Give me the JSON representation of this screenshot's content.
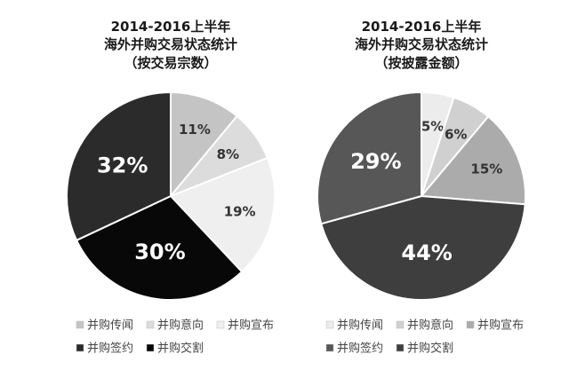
{
  "chart_data": [
    {
      "type": "pie",
      "title_lines": [
        "2014-2016上半年",
        "海外并购交易状态统计",
        "（按交易宗数）"
      ],
      "slices": [
        {
          "name": "并购传闻",
          "value": 11,
          "label": "11%",
          "color": "#c4c4c4"
        },
        {
          "name": "并购意向",
          "value": 8,
          "label": "8%",
          "color": "#dcdcdc"
        },
        {
          "name": "并购宣布",
          "value": 19,
          "label": "19%",
          "color": "#efefef"
        },
        {
          "name": "并购交割",
          "value": 30,
          "label": "30%",
          "color": "#080808"
        },
        {
          "name": "并购签约",
          "value": 32,
          "label": "32%",
          "color": "#2b2b2b"
        }
      ],
      "legend": [
        {
          "name": "并购传闻",
          "color": "#c4c4c4"
        },
        {
          "name": "并购意向",
          "color": "#dcdcdc"
        },
        {
          "name": "并购宣布",
          "color": "#efefef"
        },
        {
          "name": "并购签约",
          "color": "#2b2b2b"
        },
        {
          "name": "并购交割",
          "color": "#080808"
        }
      ],
      "legend_placement": "bottom"
    },
    {
      "type": "pie",
      "title_lines": [
        "2014-2016上半年",
        "海外并购交易状态统计",
        "（按披露金额）"
      ],
      "slices": [
        {
          "name": "并购传闻",
          "value": 5,
          "label": "5%",
          "color": "#ececec"
        },
        {
          "name": "并购意向",
          "value": 6,
          "label": "6%",
          "color": "#d0d0d0"
        },
        {
          "name": "并购宣布",
          "value": 15,
          "label": "15%",
          "color": "#ababab"
        },
        {
          "name": "并购交割",
          "value": 44,
          "label": "44%",
          "color": "#3e3e3e"
        },
        {
          "name": "并购签约",
          "value": 29,
          "label": "29%",
          "color": "#575757"
        }
      ],
      "legend": [
        {
          "name": "并购传闻",
          "color": "#ececec"
        },
        {
          "name": "并购意向",
          "color": "#d0d0d0"
        },
        {
          "name": "并购宣布",
          "color": "#ababab"
        },
        {
          "name": "并购签约",
          "color": "#575757"
        },
        {
          "name": "并购交割",
          "color": "#3e3e3e"
        }
      ],
      "legend_placement": "bottom"
    }
  ]
}
